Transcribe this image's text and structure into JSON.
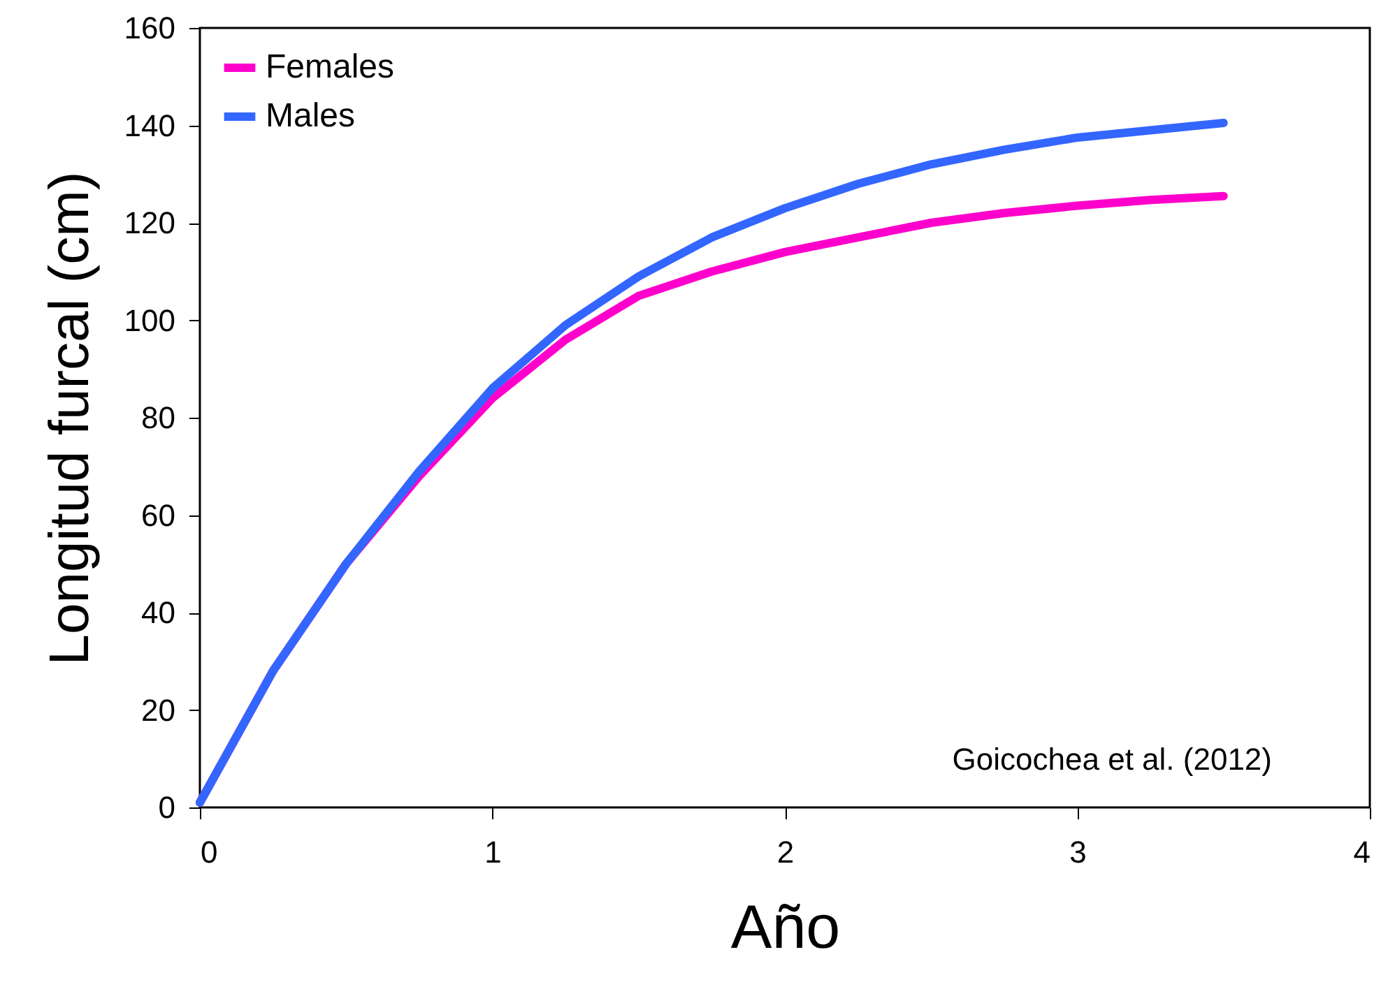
{
  "chart_data": {
    "type": "line",
    "xlabel": "Año",
    "ylabel": "Longitud furcal (cm)",
    "x": [
      0,
      0.25,
      0.5,
      0.75,
      1,
      1.25,
      1.5,
      1.75,
      2,
      2.25,
      2.5,
      2.75,
      3,
      3.25,
      3.5
    ],
    "series": [
      {
        "name": "Females",
        "color": "#ff00cc",
        "values": [
          1,
          28,
          50,
          68,
          84,
          96,
          105,
          110,
          114,
          117,
          120,
          122,
          123.5,
          124.7,
          125.5
        ]
      },
      {
        "name": "Males",
        "color": "#3366ff",
        "values": [
          1,
          28,
          50,
          69,
          86,
          99,
          109,
          117,
          123,
          128,
          132,
          135,
          137.5,
          139,
          140.5
        ]
      }
    ],
    "xlim": [
      0,
      4
    ],
    "xticks": [
      0,
      1,
      2,
      3,
      4
    ],
    "ylim": [
      0,
      160
    ],
    "yticks": [
      0,
      20,
      40,
      60,
      80,
      100,
      120,
      140,
      160
    ],
    "grid": false,
    "legend": "top left",
    "marker": "none",
    "line_style": "solid",
    "annotations": [
      "Goicochea et al. (2012)"
    ]
  }
}
